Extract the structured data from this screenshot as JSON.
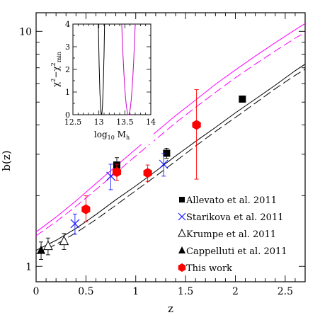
{
  "chart_data": [
    {
      "type": "scatter",
      "title": "",
      "xlabel": "z",
      "ylabel": "b(z)",
      "yscale": "log",
      "xlim": [
        0,
        2.7
      ],
      "ylim": [
        0.86,
        12
      ],
      "x_ticks": [
        "0",
        "0.5",
        "1",
        "1.5",
        "2",
        "2.5"
      ],
      "y_ticks": [
        "1",
        "10"
      ],
      "legend_position": "lower-right",
      "series": [
        {
          "name": "Allevato et al. 2011",
          "marker": "filled-square",
          "color": "#000000",
          "points": [
            {
              "x": 0.81,
              "y": 2.7,
              "yerr_low": 0.25,
              "yerr_high": 0.2
            },
            {
              "x": 1.31,
              "y": 3.03,
              "yerr_low": 0.15,
              "yerr_high": 0.15
            },
            {
              "x": 2.07,
              "y": 5.15,
              "yerr_low": 0.1,
              "yerr_high": 0.1
            }
          ]
        },
        {
          "name": "Starikova et al. 2011",
          "marker": "cross",
          "color": "#1a1aff",
          "points": [
            {
              "x": 0.39,
              "y": 1.52,
              "yerr_low": 0.15,
              "yerr_high": 0.15
            },
            {
              "x": 0.75,
              "y": 2.42,
              "yerr_low": 0.3,
              "yerr_high": 0.3
            },
            {
              "x": 1.28,
              "y": 2.72,
              "yerr_low": 0.3,
              "yerr_high": 0.3
            }
          ]
        },
        {
          "name": "Krumpe et al. 2011",
          "marker": "open-triangle",
          "color": "#000000",
          "points": [
            {
              "x": 0.12,
              "y": 1.22,
              "yerr_low": 0.1,
              "yerr_high": 0.1
            },
            {
              "x": 0.28,
              "y": 1.28,
              "yerr_low": 0.1,
              "yerr_high": 0.1
            }
          ]
        },
        {
          "name": "Cappelluti et al. 2011",
          "marker": "filled-triangle",
          "color": "#000000",
          "points": [
            {
              "x": 0.05,
              "y": 1.17,
              "yerr_low": 0.1,
              "yerr_high": 0.1
            }
          ]
        },
        {
          "name": "This work",
          "marker": "filled-hexagon",
          "color": "#ff0000",
          "points": [
            {
              "x": 0.5,
              "y": 1.75,
              "yerr_low": 0.2,
              "yerr_high": 0.25
            },
            {
              "x": 0.81,
              "y": 2.52,
              "yerr_low": 0.2,
              "yerr_high": 0.2
            },
            {
              "x": 1.12,
              "y": 2.5,
              "yerr_low": 0.2,
              "yerr_high": 0.2
            },
            {
              "x": 1.61,
              "y": 4.0,
              "yerr_low": 1.65,
              "yerr_high": 1.65
            }
          ]
        }
      ],
      "curves": [
        {
          "style": "solid",
          "color": "#000000",
          "x": [
            0,
            0.2,
            0.4,
            0.6,
            0.8,
            1.0,
            1.2,
            1.4,
            1.6,
            1.8,
            2.0,
            2.2,
            2.4,
            2.6,
            2.7
          ],
          "y": [
            1.17,
            1.29,
            1.45,
            1.66,
            1.92,
            2.2,
            2.54,
            2.95,
            3.4,
            3.9,
            4.5,
            5.15,
            5.9,
            6.8,
            7.25
          ]
        },
        {
          "style": "dashed",
          "color": "#000000",
          "x": [
            0,
            0.2,
            0.4,
            0.6,
            0.8,
            1.0,
            1.2,
            1.4,
            1.6,
            1.8,
            2.0,
            2.2,
            2.4,
            2.6,
            2.7
          ],
          "y": [
            1.13,
            1.24,
            1.39,
            1.58,
            1.82,
            2.1,
            2.42,
            2.8,
            3.25,
            3.75,
            4.3,
            4.95,
            5.7,
            6.5,
            6.9
          ]
        },
        {
          "style": "solid",
          "color": "#ff00ff",
          "x": [
            0,
            0.2,
            0.4,
            0.6,
            0.8,
            1.0,
            1.2,
            1.4,
            1.6,
            1.8,
            2.0,
            2.2,
            2.4,
            2.6,
            2.7
          ],
          "y": [
            1.4,
            1.62,
            1.9,
            2.25,
            2.67,
            3.15,
            3.72,
            4.38,
            5.1,
            5.95,
            6.85,
            7.85,
            8.95,
            10.15,
            10.8
          ]
        },
        {
          "style": "dashed",
          "color": "#ff00ff",
          "x": [
            0,
            0.2,
            0.4,
            0.6,
            0.8,
            1.0,
            1.2,
            1.4,
            1.6,
            1.8,
            2.0,
            2.2,
            2.4,
            2.6,
            2.7
          ],
          "y": [
            1.35,
            1.55,
            1.8,
            2.12,
            2.5,
            2.95,
            3.47,
            4.08,
            4.75,
            5.5,
            6.35,
            7.25,
            8.25,
            9.35,
            9.9
          ]
        }
      ]
    },
    {
      "type": "line",
      "title": "",
      "xlabel": "log10 Mh",
      "ylabel": "χ² − χ²min",
      "xlim": [
        12.5,
        14
      ],
      "ylim": [
        0,
        4
      ],
      "x_ticks": [
        "12.5",
        "13",
        "13.5",
        "14"
      ],
      "y_ticks": [
        "0",
        "1",
        "2",
        "3",
        "4"
      ],
      "series": [
        {
          "color": "#000000",
          "center": 13.05,
          "width_at_4": 0.06
        },
        {
          "color": "#cc00cc",
          "center": 13.57,
          "width_at_4": 0.13
        }
      ]
    }
  ],
  "legend": [
    {
      "label": "Allevato et al. 2011",
      "marker": "filled-square",
      "color": "#000000"
    },
    {
      "label": "Starikova et al. 2011",
      "marker": "cross",
      "color": "#1a1aff"
    },
    {
      "label": "Krumpe et al. 2011",
      "marker": "open-triangle",
      "color": "#000000"
    },
    {
      "label": "Cappelluti et al. 2011",
      "marker": "filled-triangle",
      "color": "#000000"
    },
    {
      "label": "This work",
      "marker": "filled-hexagon",
      "color": "#ff0000"
    }
  ]
}
